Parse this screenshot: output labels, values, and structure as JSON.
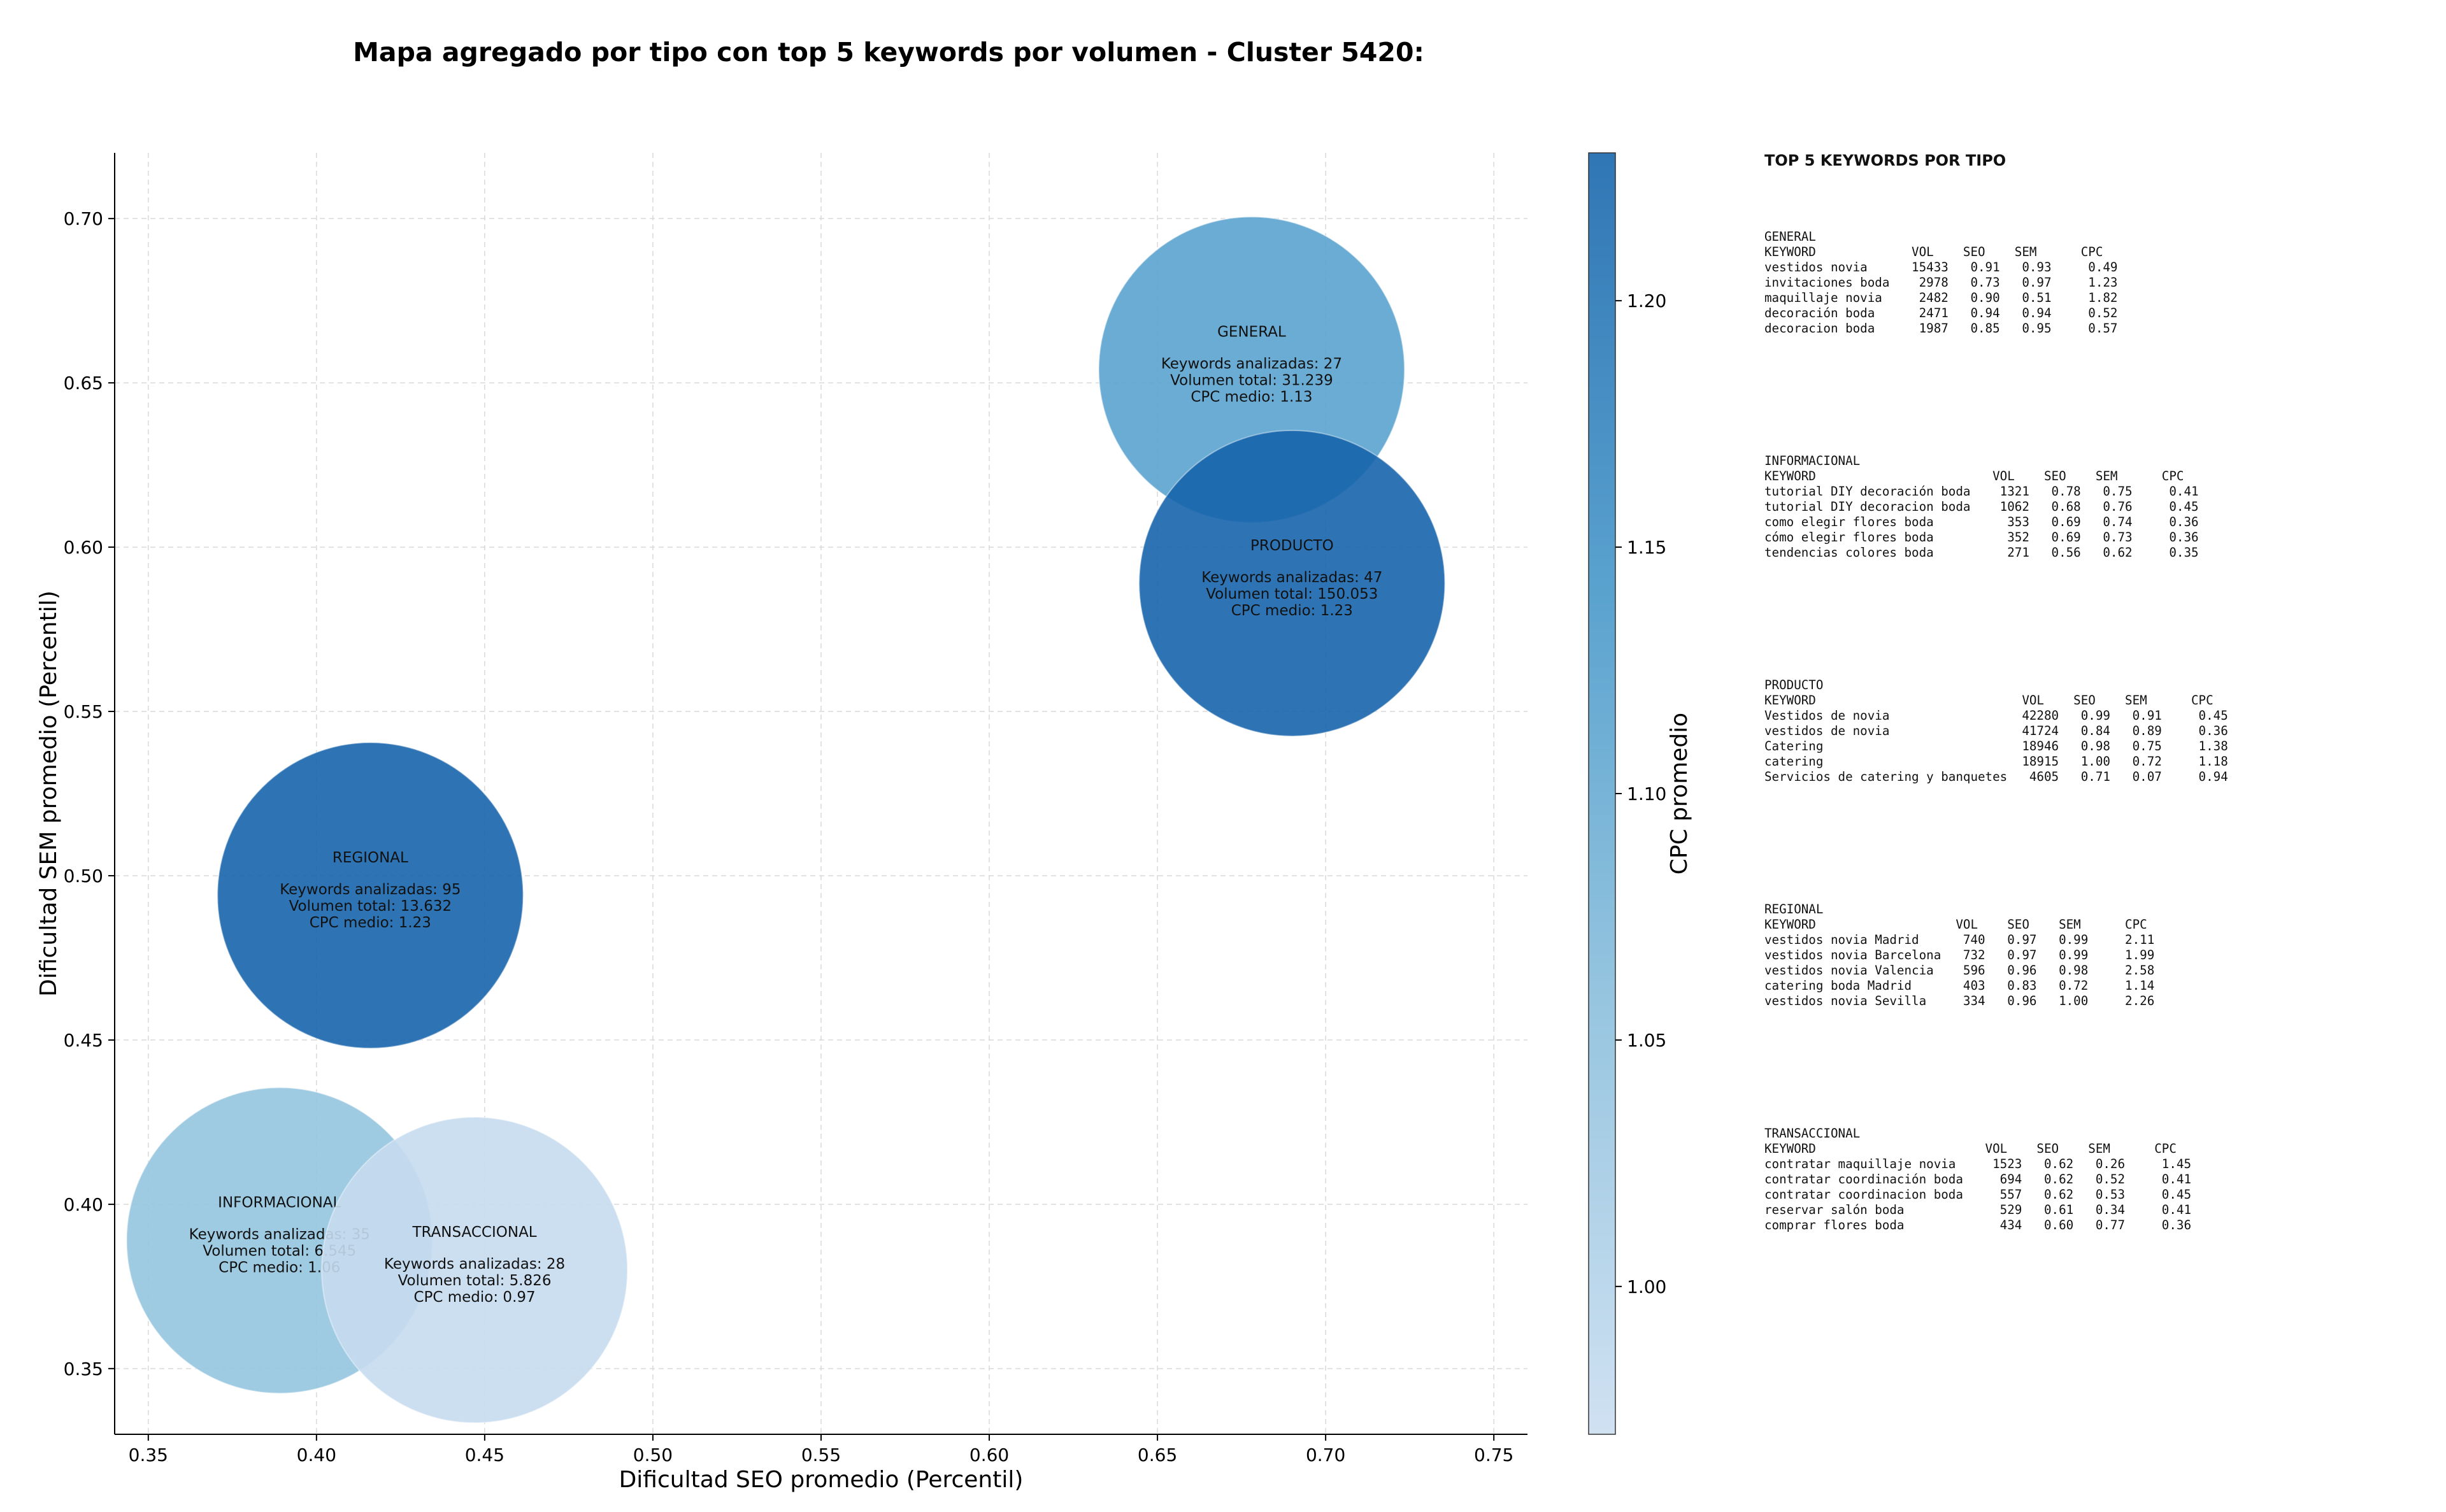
{
  "chart_data": {
    "type": "scatter",
    "title": "Mapa agregado por tipo con top 5 keywords por volumen - Cluster 5420:",
    "xlabel": "Dificultad SEO promedio (Percentil)",
    "ylabel": "Dificultad SEM promedio (Percentil)",
    "xlim": [
      0.34,
      0.76
    ],
    "ylim": [
      0.33,
      0.72
    ],
    "xticks": [
      "0.35",
      "0.40",
      "0.45",
      "0.50",
      "0.55",
      "0.60",
      "0.65",
      "0.70",
      "0.75"
    ],
    "yticks": [
      "0.35",
      "0.40",
      "0.45",
      "0.50",
      "0.55",
      "0.60",
      "0.65",
      "0.70"
    ],
    "grid": true,
    "colorbar": {
      "label": "CPC promedio",
      "min": 0.97,
      "max": 1.23,
      "ticks": [
        "1.00",
        "1.05",
        "1.10",
        "1.15",
        "1.20"
      ],
      "color_low": "#d0e1f2",
      "color_high": "#2f76b5"
    },
    "bubbles": [
      {
        "name": "GENERAL",
        "x": 0.678,
        "y": 0.654,
        "cpc": 1.13,
        "keywords_text": "Keywords analizadas: 27",
        "volume_text": "Volumen total: 31.239",
        "cpc_text": "CPC medio: 1.13",
        "color": "#5ba3cf"
      },
      {
        "name": "PRODUCTO",
        "x": 0.69,
        "y": 0.589,
        "cpc": 1.23,
        "keywords_text": "Keywords analizadas: 47",
        "volume_text": "Volumen total: 150.053",
        "cpc_text": "CPC medio: 1.23",
        "color": "#1764ab"
      },
      {
        "name": "REGIONAL",
        "x": 0.416,
        "y": 0.494,
        "cpc": 1.23,
        "keywords_text": "Keywords analizadas: 95",
        "volume_text": "Volumen total: 13.632",
        "cpc_text": "CPC medio: 1.23",
        "color": "#1764ab"
      },
      {
        "name": "INFORMACIONAL",
        "x": 0.389,
        "y": 0.389,
        "cpc": 1.06,
        "keywords_text": "Keywords analizadas: 35",
        "volume_text": "Volumen total: 6.545",
        "cpc_text": "CPC medio: 1.06",
        "color": "#94c4df"
      },
      {
        "name": "TRANSACCIONAL",
        "x": 0.447,
        "y": 0.38,
        "cpc": 0.97,
        "keywords_text": "Keywords analizadas: 28",
        "volume_text": "Volumen total: 5.826",
        "cpc_text": "CPC medio: 0.97",
        "color": "#c6dbef"
      }
    ]
  },
  "side_panel": {
    "title": "TOP 5 KEYWORDS POR TIPO",
    "blocks": [
      {
        "name": "GENERAL",
        "header": "KEYWORD             VOL    SEO    SEM      CPC",
        "rows": [
          "vestidos novia      15433   0.91   0.93     0.49",
          "invitaciones boda    2978   0.73   0.97     1.23",
          "maquillaje novia     2482   0.90   0.51     1.82",
          "decoración boda      2471   0.94   0.94     0.52",
          "decoracion boda      1987   0.85   0.95     0.57"
        ]
      },
      {
        "name": "INFORMACIONAL",
        "header": "KEYWORD                        VOL    SEO    SEM      CPC",
        "rows": [
          "tutorial DIY decoración boda    1321   0.78   0.75     0.41",
          "tutorial DIY decoracion boda    1062   0.68   0.76     0.45",
          "como elegir flores boda          353   0.69   0.74     0.36",
          "cómo elegir flores boda          352   0.69   0.73     0.36",
          "tendencias colores boda          271   0.56   0.62     0.35"
        ]
      },
      {
        "name": "PRODUCTO",
        "header": "KEYWORD                            VOL    SEO    SEM      CPC",
        "rows": [
          "Vestidos de novia                  42280   0.99   0.91     0.45",
          "vestidos de novia                  41724   0.84   0.89     0.36",
          "Catering                           18946   0.98   0.75     1.38",
          "catering                           18915   1.00   0.72     1.18",
          "Servicios de catering y banquetes   4605   0.71   0.07     0.94"
        ]
      },
      {
        "name": "REGIONAL",
        "header": "KEYWORD                   VOL    SEO    SEM      CPC",
        "rows": [
          "vestidos novia Madrid      740   0.97   0.99     2.11",
          "vestidos novia Barcelona   732   0.97   0.99     1.99",
          "vestidos novia Valencia    596   0.96   0.98     2.58",
          "catering boda Madrid       403   0.83   0.72     1.14",
          "vestidos novia Sevilla     334   0.96   1.00     2.26"
        ]
      },
      {
        "name": "TRANSACCIONAL",
        "header": "KEYWORD                       VOL    SEO    SEM      CPC",
        "rows": [
          "contratar maquillaje novia     1523   0.62   0.26     1.45",
          "contratar coordinación boda     694   0.62   0.52     0.41",
          "contratar coordinacion boda     557   0.62   0.53     0.45",
          "reservar salón boda             529   0.61   0.34     0.41",
          "comprar flores boda             434   0.60   0.77     0.36"
        ]
      }
    ]
  }
}
